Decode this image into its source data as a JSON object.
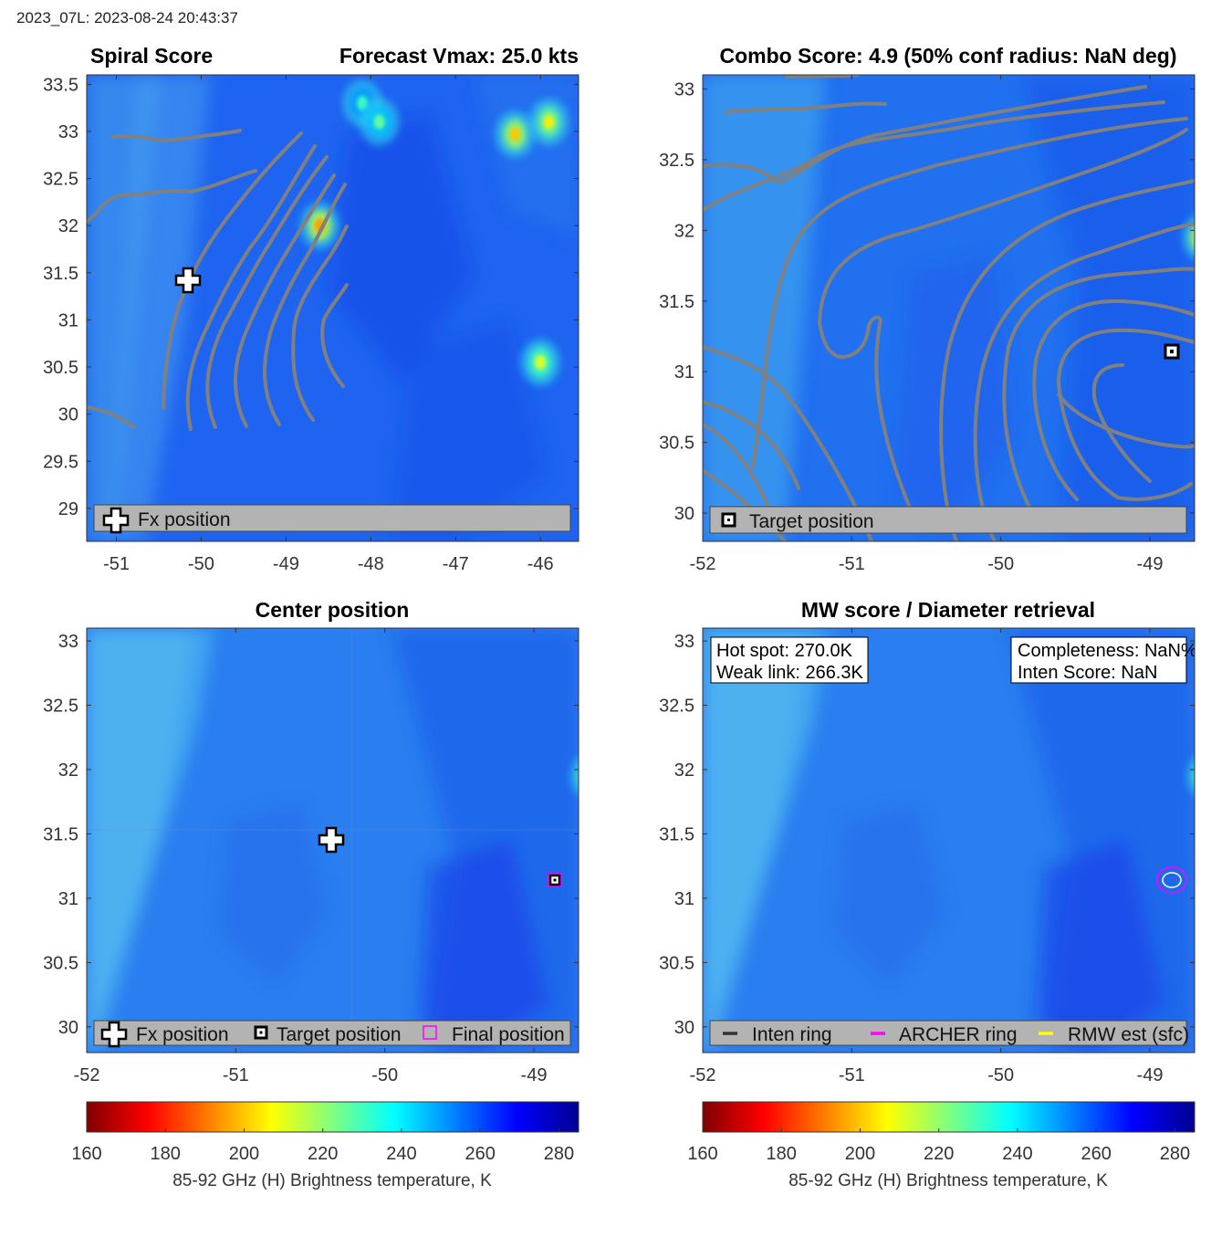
{
  "header": {
    "storm_time": "2023_07L: 2023-08-24 20:43:37"
  },
  "colors": {
    "panel_bg": "#1e64f0",
    "contour": "#808080",
    "legend_bg": "#b3b3b3",
    "archer_ring": "#ff00ff",
    "final_position": "#ff00ff"
  },
  "panels": {
    "spiral": {
      "title_left": "Spiral Score",
      "title_right": "Forecast Vmax: 25.0 kts",
      "legend": [
        "Fx position"
      ]
    },
    "combo": {
      "title": "Combo Score: 4.9  (50% conf radius: NaN deg)",
      "legend": [
        "Target position"
      ]
    },
    "center": {
      "title": "Center position",
      "legend": [
        "Fx position",
        "Target position",
        "Final position"
      ]
    },
    "mw": {
      "title": "MW score / Diameter retrieval",
      "info_left": [
        "Hot spot: 270.0K",
        "Weak link: 266.3K"
      ],
      "info_right": [
        "Completeness: NaN%",
        "Inten Score: NaN"
      ],
      "legend": [
        "Inten ring",
        "ARCHER ring",
        "RMW est (sfc)"
      ]
    }
  },
  "colorbar": {
    "label": "85-92 GHz (H) Brightness temperature, K",
    "ticks": [
      "160",
      "180",
      "200",
      "220",
      "240",
      "260",
      "280"
    ],
    "min": 160,
    "max": 285,
    "colormap": "jet_reversed"
  },
  "chart_data": [
    {
      "type": "heatmap",
      "panel": "spiral",
      "xlim": [
        -51.35,
        -45.55
      ],
      "ylim": [
        28.65,
        33.6
      ],
      "xticks": [
        "-51",
        "-50",
        "-49",
        "-48",
        "-47",
        "-46"
      ],
      "yticks": [
        "29",
        "29.5",
        "30",
        "30.5",
        "31",
        "31.5",
        "32",
        "32.5",
        "33",
        "33.5"
      ],
      "field": "brightness_temperature_K",
      "hot_spots_K": [
        {
          "x": -46.3,
          "y": 32.97,
          "min_K": 200
        },
        {
          "x": -45.9,
          "y": 33.1,
          "min_K": 205
        },
        {
          "x": -48.6,
          "y": 32.0,
          "min_K": 195
        },
        {
          "x": -46.0,
          "y": 30.55,
          "min_K": 210
        },
        {
          "x": -48.1,
          "y": 33.3,
          "min_K": 230
        },
        {
          "x": -47.9,
          "y": 33.1,
          "min_K": 225
        }
      ],
      "fx_position": {
        "x": -50.15,
        "y": 31.42
      },
      "contours": "spiral_overlay"
    },
    {
      "type": "heatmap",
      "panel": "combo",
      "xlim": [
        -52,
        -48.7
      ],
      "ylim": [
        29.8,
        33.1
      ],
      "xticks": [
        "-52",
        "-51",
        "-50",
        "-49"
      ],
      "yticks": [
        "30",
        "30.5",
        "31",
        "31.5",
        "32",
        "32.5",
        "33"
      ],
      "field": "brightness_temperature_K",
      "hot_spots_K": [
        {
          "x": -48.65,
          "y": 31.95,
          "min_K": 195
        }
      ],
      "target_position": {
        "x": -48.42,
        "y": 31.12
      },
      "contours": "combo_overlay"
    },
    {
      "type": "heatmap",
      "panel": "center",
      "xlim": [
        -52,
        -48.7
      ],
      "ylim": [
        29.8,
        33.1
      ],
      "xticks": [
        "-52",
        "-51",
        "-50",
        "-49"
      ],
      "yticks": [
        "30",
        "30.5",
        "31",
        "31.5",
        "32",
        "32.5",
        "33"
      ],
      "field": "brightness_temperature_K",
      "hot_spots_K": [
        {
          "x": -48.62,
          "y": 31.95,
          "min_K": 205
        }
      ],
      "fx_position": {
        "x": -50.15,
        "y": 31.42
      },
      "target_position": {
        "x": -48.42,
        "y": 31.12
      },
      "final_position": {
        "x": -48.42,
        "y": 31.12
      }
    },
    {
      "type": "heatmap",
      "panel": "mw",
      "xlim": [
        -52,
        -48.7
      ],
      "ylim": [
        29.8,
        33.1
      ],
      "xticks": [
        "-52",
        "-51",
        "-50",
        "-49"
      ],
      "yticks": [
        "30",
        "30.5",
        "31",
        "31.5",
        "32",
        "32.5",
        "33"
      ],
      "field": "brightness_temperature_K",
      "hot_spots_K": [
        {
          "x": -48.62,
          "y": 31.95,
          "min_K": 205
        }
      ],
      "archer_ring_center": {
        "x": -48.42,
        "y": 31.12
      }
    }
  ]
}
